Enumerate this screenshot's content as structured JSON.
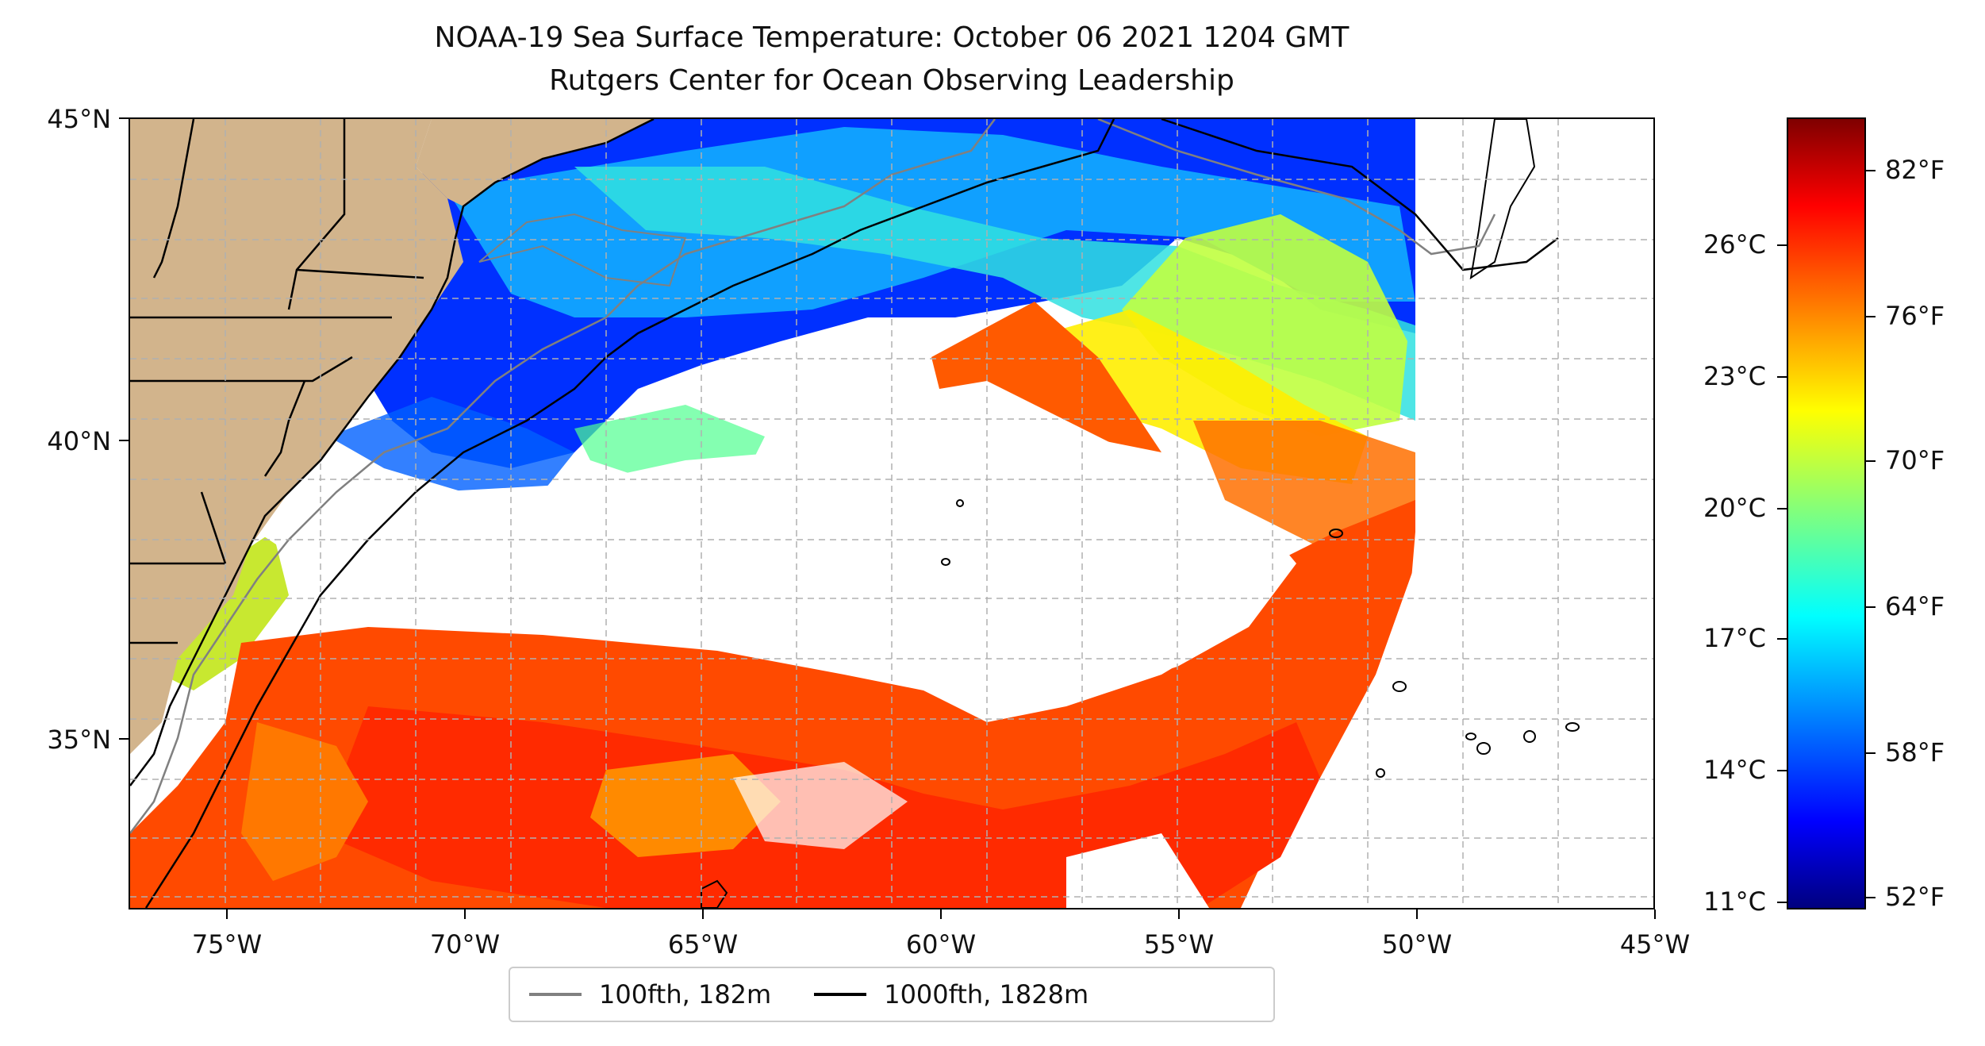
{
  "title": {
    "line1": "NOAA-19 Sea Surface Temperature: October 06 2021 1204 GMT",
    "line2": "Rutgers Center for Ocean Observing Leadership"
  },
  "map": {
    "lat_labels": [
      "45°N",
      "40°N",
      "35°N"
    ],
    "lon_labels": [
      "75°W",
      "70°W",
      "65°W",
      "60°W",
      "55°W",
      "50°W",
      "45°W"
    ],
    "land_color": "#d2b48c",
    "ocean_missing_color": "#ffffff",
    "grid": "dashed light gray"
  },
  "legend": {
    "items": [
      {
        "label": "100fth, 182m",
        "color": "#808080"
      },
      {
        "label": "1000fth, 1828m",
        "color": "#000000"
      }
    ]
  },
  "colorbar": {
    "colormap": "jet",
    "celsius_labels": [
      "26°C",
      "23°C",
      "20°C",
      "17°C",
      "14°C",
      "11°C"
    ],
    "fahrenheit_labels": [
      "82°F",
      "76°F",
      "70°F",
      "64°F",
      "58°F",
      "52°F"
    ]
  }
}
